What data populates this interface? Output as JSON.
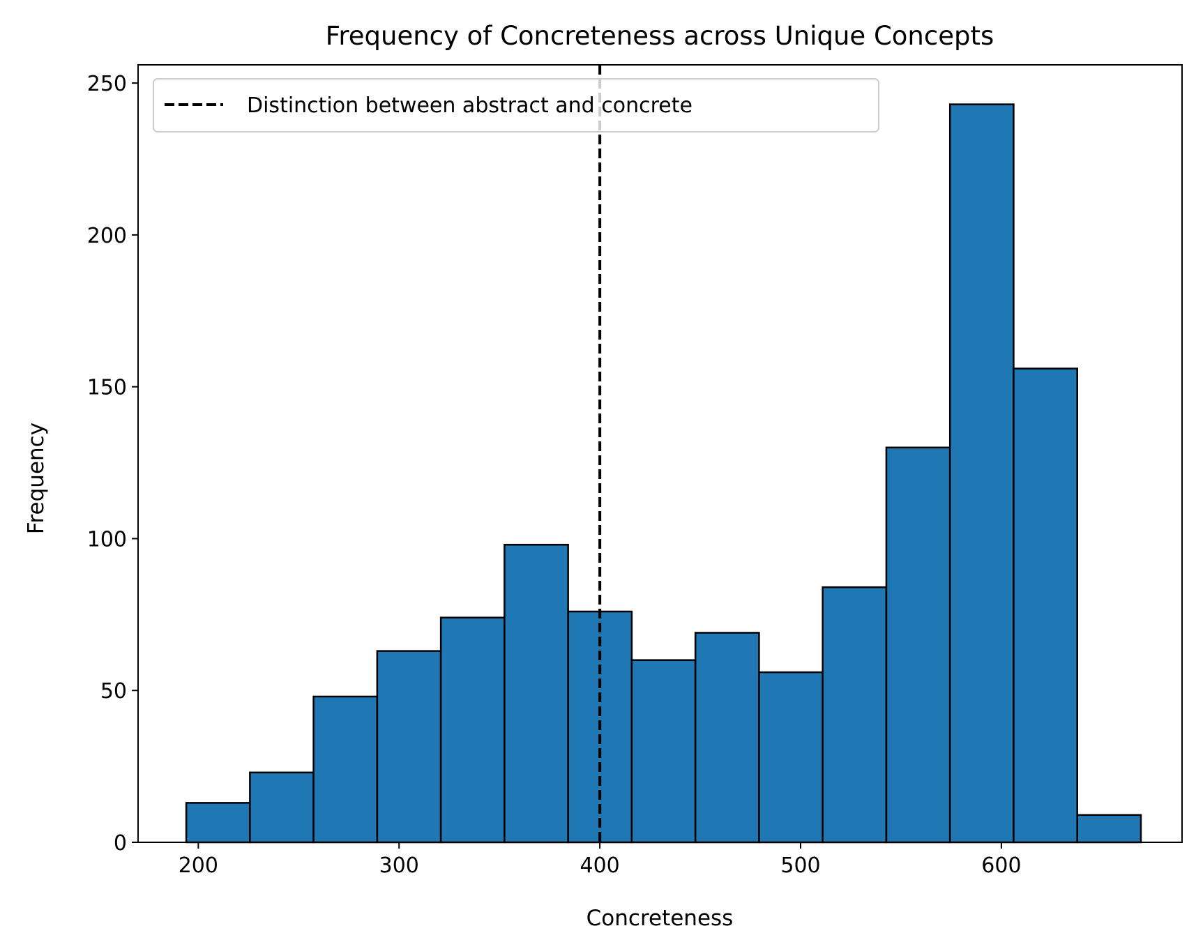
{
  "chart_data": {
    "type": "bar",
    "subtype": "histogram",
    "title": "Frequency of Concreteness across Unique Concepts",
    "xlabel": "Concreteness",
    "ylabel": "Frequency",
    "xlim": [
      170,
      690
    ],
    "ylim": [
      0,
      256
    ],
    "xticks": [
      200,
      300,
      400,
      500,
      600
    ],
    "yticks": [
      0,
      50,
      100,
      150,
      200,
      250
    ],
    "bin_edges": [
      194,
      225.7,
      257.4,
      289.1,
      320.8,
      352.5,
      384.2,
      415.9,
      447.6,
      479.3,
      511,
      542.7,
      574.4,
      606.1,
      637.8,
      669.5
    ],
    "values": [
      13,
      23,
      48,
      63,
      74,
      98,
      76,
      60,
      69,
      56,
      84,
      130,
      243,
      156,
      9
    ],
    "threshold": {
      "x": 400,
      "label": "Distinction between abstract and concrete",
      "style": "dashed"
    },
    "legend_position": "top-left",
    "grid": false,
    "colors": {
      "bar_fill": "#1f77b4",
      "bar_edge": "#000000",
      "threshold_line": "#000000"
    }
  }
}
